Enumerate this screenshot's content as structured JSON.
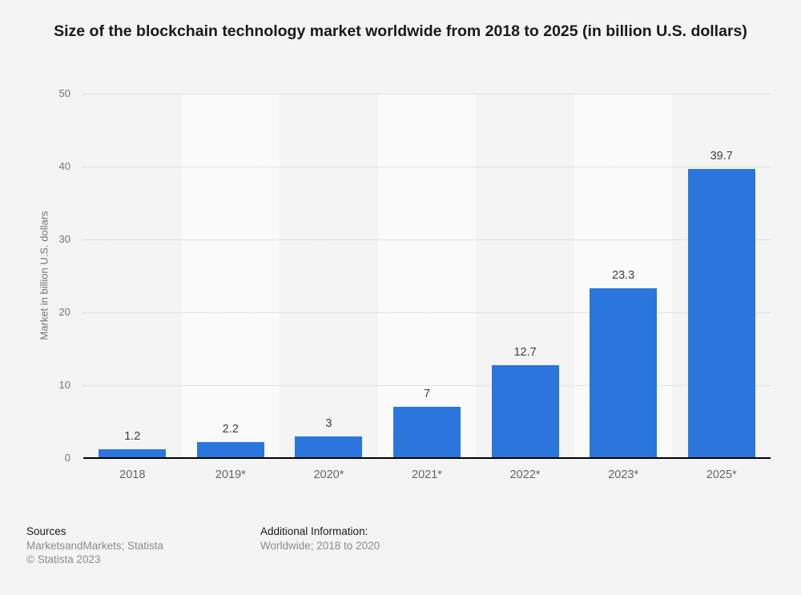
{
  "title": "Size of the blockchain technology market worldwide from 2018 to 2025 (in billion U.S. dollars)",
  "chart_data": {
    "type": "bar",
    "categories": [
      "2018",
      "2019*",
      "2020*",
      "2021*",
      "2022*",
      "2023*",
      "2025*"
    ],
    "values": [
      1.2,
      2.2,
      3,
      7,
      12.7,
      23.3,
      39.7
    ],
    "title": "Size of the blockchain technology market worldwide from 2018 to 2025 (in billion U.S. dollars)",
    "xlabel": "",
    "ylabel": "Market in billion U.S. dollars",
    "ylim": [
      0,
      50
    ],
    "yticks": [
      0,
      10,
      20,
      30,
      40,
      50
    ],
    "grid": "horizontal-dotted",
    "legend": "none",
    "bar_color": "#2a76dd",
    "band_color": "#fafafa",
    "background_color": "#f4f4f4",
    "gridline_color": "#cccccc",
    "axis_line_color": "#000000"
  },
  "footer": {
    "sources_label": "Sources",
    "sources_value": "MarketsandMarkets; Statista",
    "copyright": "© Statista 2023",
    "additional_label": "Additional Information:",
    "additional_value": "Worldwide; 2018 to 2020"
  }
}
